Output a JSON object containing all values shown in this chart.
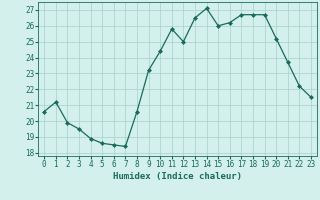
{
  "x": [
    0,
    1,
    2,
    3,
    4,
    5,
    6,
    7,
    8,
    9,
    10,
    11,
    12,
    13,
    14,
    15,
    16,
    17,
    18,
    19,
    20,
    21,
    22,
    23
  ],
  "y": [
    20.6,
    21.2,
    19.9,
    19.5,
    18.9,
    18.6,
    18.5,
    18.4,
    20.6,
    23.2,
    24.4,
    25.8,
    25.0,
    26.5,
    27.1,
    26.0,
    26.2,
    26.7,
    26.7,
    26.7,
    25.2,
    23.7,
    22.2,
    21.5
  ],
  "line_color": "#1a6b5a",
  "marker": "D",
  "marker_size": 2,
  "bg_color": "#d4f0ec",
  "grid_color": "#aed4ce",
  "xlabel": "Humidex (Indice chaleur)",
  "ylim": [
    17.8,
    27.5
  ],
  "xlim": [
    -0.5,
    23.5
  ],
  "yticks": [
    18,
    19,
    20,
    21,
    22,
    23,
    24,
    25,
    26,
    27
  ],
  "xticks": [
    0,
    1,
    2,
    3,
    4,
    5,
    6,
    7,
    8,
    9,
    10,
    11,
    12,
    13,
    14,
    15,
    16,
    17,
    18,
    19,
    20,
    21,
    22,
    23
  ],
  "title_color": "#1a6b5a",
  "label_fontsize": 6.5,
  "tick_fontsize": 5.5
}
